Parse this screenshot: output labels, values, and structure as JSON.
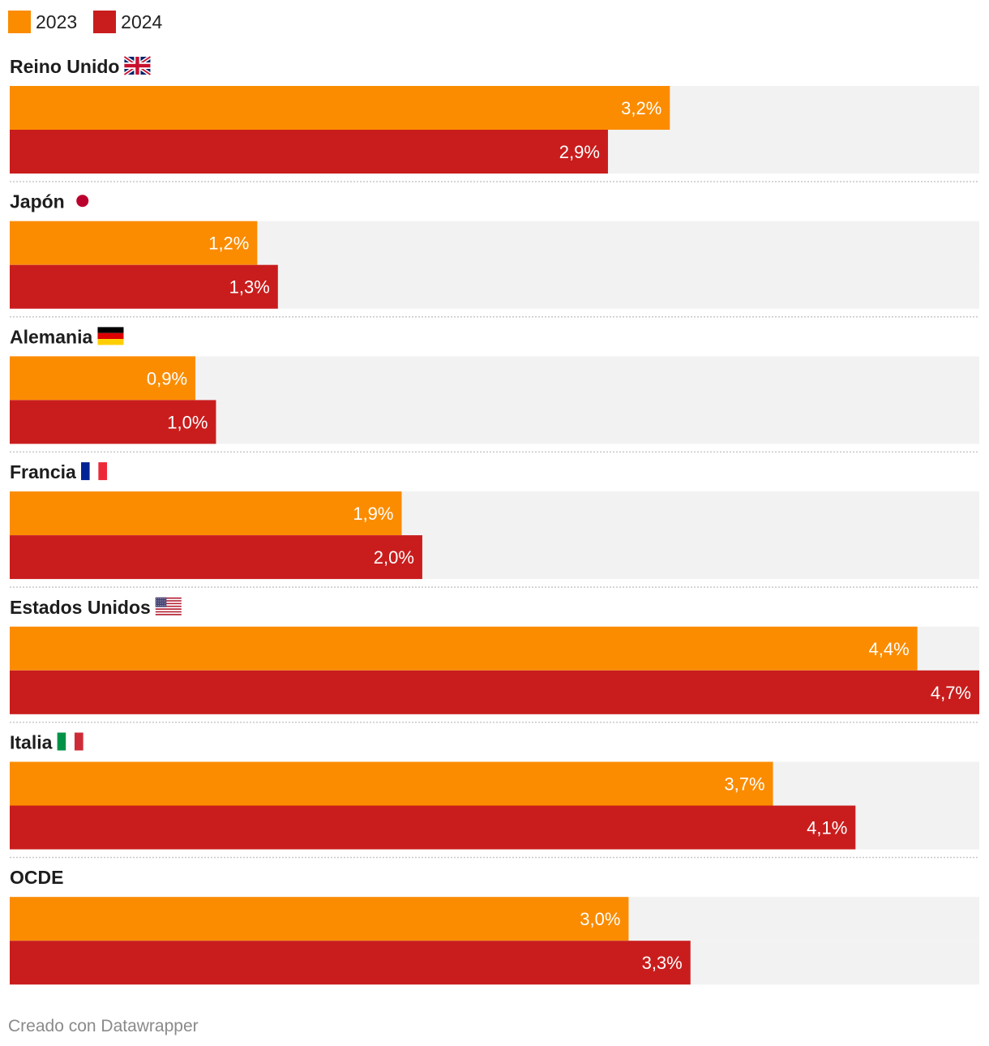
{
  "legend": [
    {
      "label": "2023",
      "color": "#fb8c00"
    },
    {
      "label": "2024",
      "color": "#c91d1d"
    }
  ],
  "footer": "Creado con Datawrapper",
  "chart_data": {
    "type": "bar",
    "orientation": "horizontal",
    "xlim": [
      0,
      4.7
    ],
    "grid": false,
    "legend_position": "top-left",
    "track_color": "#f2f2f2",
    "categories": [
      {
        "label": "Reino Unido",
        "flag": "uk-flag-icon"
      },
      {
        "label": "Japón",
        "flag": "japan-flag-icon"
      },
      {
        "label": "Alemania",
        "flag": "germany-flag-icon"
      },
      {
        "label": "Francia",
        "flag": "france-flag-icon"
      },
      {
        "label": "Estados Unidos",
        "flag": "usa-flag-icon"
      },
      {
        "label": "Italia",
        "flag": "italy-flag-icon"
      },
      {
        "label": "OCDE",
        "flag": ""
      }
    ],
    "series": [
      {
        "name": "2023",
        "color": "#fb8c00",
        "values": [
          3.2,
          1.2,
          0.9,
          1.9,
          4.4,
          3.7,
          3.0
        ],
        "labels": [
          "3,2%",
          "1,2%",
          "0,9%",
          "1,9%",
          "4,4%",
          "3,7%",
          "3,0%"
        ]
      },
      {
        "name": "2024",
        "color": "#c91d1d",
        "values": [
          2.9,
          1.3,
          1.0,
          2.0,
          4.7,
          4.1,
          3.3
        ],
        "labels": [
          "2,9%",
          "1,3%",
          "1,0%",
          "2,0%",
          "4,7%",
          "4,1%",
          "3,3%"
        ]
      }
    ]
  }
}
